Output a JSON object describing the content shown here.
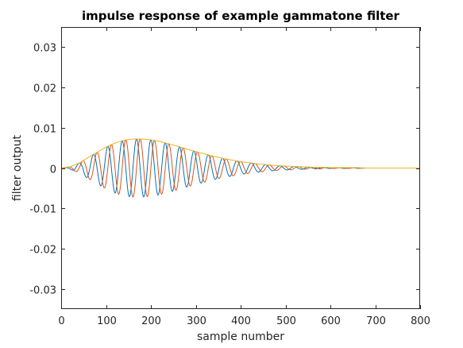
{
  "chart_data": {
    "type": "line",
    "title": "impulse response of example gammatone filter",
    "xlabel": "sample number",
    "ylabel": "filter output",
    "xlim": [
      0,
      800
    ],
    "ylim": [
      -0.035,
      0.035
    ],
    "x_ticks": [
      0,
      100,
      200,
      300,
      400,
      500,
      600,
      700,
      800
    ],
    "x_tick_labels": [
      "0",
      "100",
      "200",
      "300",
      "400",
      "500",
      "600",
      "700",
      "800"
    ],
    "y_ticks": [
      0.03,
      0.02,
      0.01,
      0,
      -0.01,
      -0.02,
      -0.03
    ],
    "y_tick_labels": [
      "0.03",
      "0.02",
      "0.01",
      "0",
      "-0.01",
      "-0.02",
      "-0.03"
    ],
    "grid": false,
    "series": [
      {
        "color": "#0072BD",
        "x": [
          0,
          20,
          40,
          60,
          80,
          100,
          120,
          140,
          160,
          180,
          200,
          220,
          240,
          260,
          280,
          300,
          320,
          340,
          360,
          380,
          400,
          420,
          440,
          460,
          480,
          500,
          520,
          540,
          560,
          580,
          600,
          620,
          640,
          660,
          680
        ],
        "values": [
          0,
          0.0003,
          0.0012,
          0.0026,
          0.0039,
          0.0052,
          0.0062,
          0.0069,
          0.0072,
          0.0072,
          0.007,
          0.0066,
          0.006,
          0.0054,
          0.0047,
          0.0041,
          0.0035,
          0.0029,
          0.0024,
          0.002,
          0.0016,
          0.0013,
          0.001,
          0.0008,
          0.0006,
          0.0005,
          0.0004,
          0.0003,
          0.0002,
          0.0002,
          0.0001,
          0.0001,
          0.0001,
          0.0001,
          0
        ]
      },
      {
        "color": "#D95319",
        "x": [
          0,
          20,
          40,
          60,
          80,
          100,
          120,
          140,
          160,
          180,
          200,
          220,
          240,
          260,
          280,
          300,
          320,
          340,
          360,
          380,
          400,
          420,
          440,
          460,
          480,
          500,
          520,
          540,
          560,
          580,
          600,
          620,
          640,
          660,
          680
        ],
        "values": [
          0,
          0.0003,
          0.0012,
          0.0026,
          0.0039,
          0.0052,
          0.0062,
          0.0069,
          0.0072,
          0.0072,
          0.007,
          0.0066,
          0.006,
          0.0054,
          0.0047,
          0.0041,
          0.0035,
          0.0029,
          0.0024,
          0.002,
          0.0016,
          0.0013,
          0.001,
          0.0008,
          0.0006,
          0.0005,
          0.0004,
          0.0003,
          0.0002,
          0.0002,
          0.0001,
          0.0001,
          0.0001,
          0.0001,
          0
        ]
      },
      {
        "color": "#EDB120",
        "x": [
          0,
          20,
          40,
          60,
          80,
          100,
          120,
          140,
          160,
          180,
          200,
          220,
          240,
          260,
          280,
          300,
          320,
          340,
          360,
          380,
          400,
          420,
          440,
          460,
          480,
          500,
          520,
          540,
          560,
          580,
          600,
          620,
          640,
          660,
          680,
          700,
          750,
          800
        ],
        "values": [
          0,
          0.0003,
          0.0012,
          0.0026,
          0.0039,
          0.0052,
          0.0062,
          0.0069,
          0.0072,
          0.0072,
          0.007,
          0.0066,
          0.006,
          0.0054,
          0.0047,
          0.0041,
          0.0035,
          0.0029,
          0.0024,
          0.002,
          0.0016,
          0.0013,
          0.001,
          0.0008,
          0.0006,
          0.0005,
          0.0004,
          0.0003,
          0.0002,
          0.0002,
          0.0001,
          0.0001,
          0.0001,
          0.0001,
          0,
          0,
          0,
          0
        ]
      }
    ]
  }
}
